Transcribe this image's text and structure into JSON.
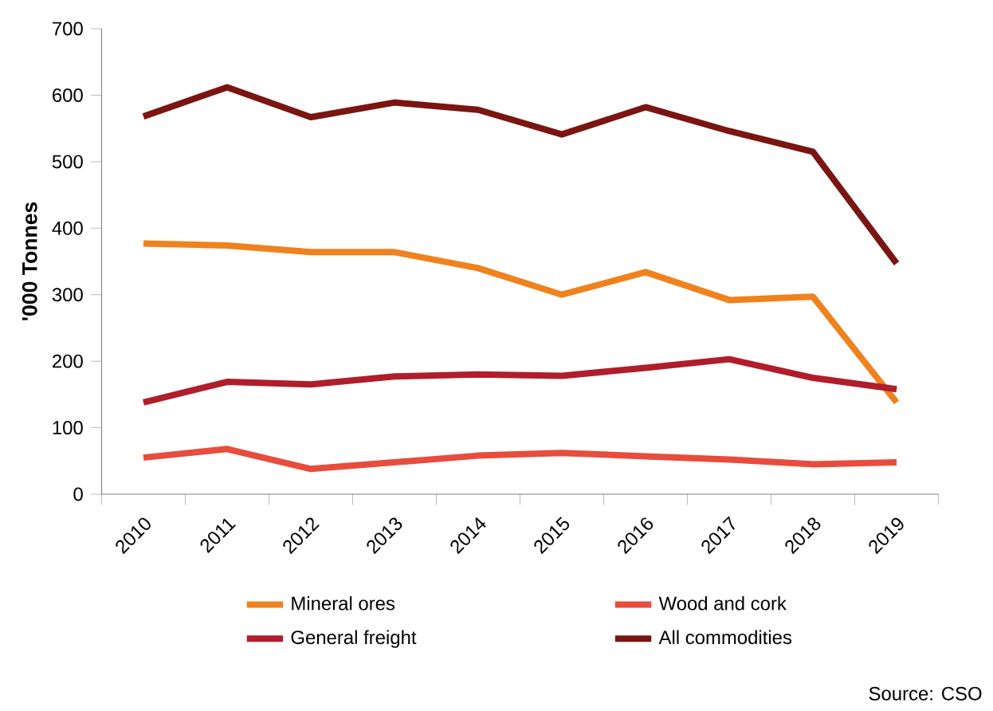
{
  "chart_data": {
    "type": "line",
    "ylabel": "'000 Tonnes",
    "categories": [
      "2010",
      "2011",
      "2012",
      "2013",
      "2014",
      "2015",
      "2016",
      "2017",
      "2018",
      "2019"
    ],
    "series": [
      {
        "name": "Mineral ores",
        "color": "#f0821e",
        "values": [
          377,
          374,
          364,
          364,
          340,
          300,
          334,
          292,
          297,
          138
        ]
      },
      {
        "name": "Wood and cork",
        "color": "#e84c3d",
        "values": [
          55,
          68,
          38,
          48,
          58,
          62,
          57,
          52,
          45,
          48
        ]
      },
      {
        "name": "General freight",
        "color": "#b01d2b",
        "values": [
          138,
          169,
          165,
          177,
          180,
          178,
          190,
          203,
          175,
          158
        ]
      },
      {
        "name": "All commodities",
        "color": "#7a1511",
        "values": [
          568,
          612,
          567,
          589,
          578,
          541,
          582,
          546,
          515,
          347
        ]
      }
    ],
    "ylim": [
      0,
      700
    ],
    "yticks": [
      0,
      100,
      200,
      300,
      400,
      500,
      600,
      700
    ],
    "marker": "none",
    "legend": "bottom",
    "annotations": [
      "Source: CSO"
    ]
  }
}
